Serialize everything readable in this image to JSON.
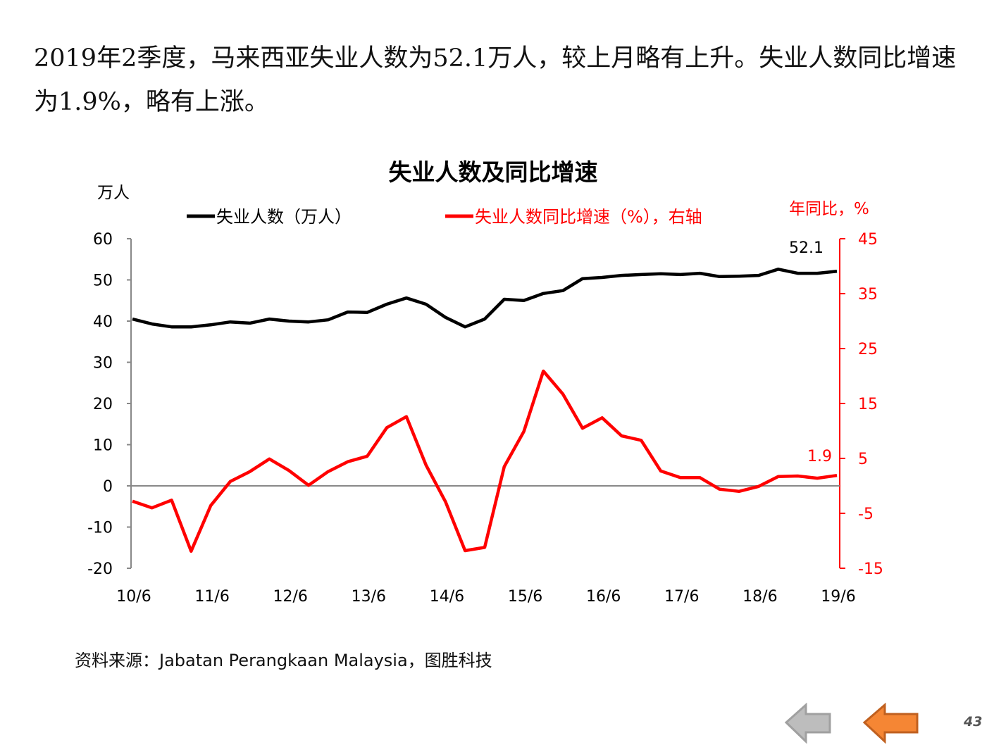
{
  "headline": "2019年2季度，马来西亚失业人数为52.1万人，较上月略有上升。失业人数同比增速为1.9%，略有上涨。",
  "source": "资料来源：Jabatan Perangkaan Malaysia，图胜科技",
  "page_number": "43",
  "nav": {
    "prev_icon": "arrow-left-gray-icon",
    "back_icon": "arrow-left-orange-icon"
  },
  "colors": {
    "series1": "#000000",
    "series2": "#ff0000",
    "axis": "#888888",
    "nav_gray": "#bdbdbd",
    "nav_orange": "#f58634"
  },
  "chart_data": {
    "type": "line",
    "title": "失业人数及同比增速",
    "ylabel_left": "万人",
    "ylabel_right": "年同比，%",
    "ylim_left": [
      -20,
      60
    ],
    "ylim_right": [
      -15,
      45
    ],
    "yticks_left": [
      "60",
      "50",
      "40",
      "30",
      "20",
      "10",
      "0",
      "-10",
      "-20"
    ],
    "yticks_right": [
      "45",
      "35",
      "25",
      "15",
      "5",
      "-5",
      "-15"
    ],
    "xtick_labels": [
      "10/6",
      "11/6",
      "12/6",
      "13/6",
      "14/6",
      "15/6",
      "16/6",
      "17/6",
      "18/6",
      "19/6"
    ],
    "legend": [
      "失业人数（万人）",
      "失业人数同比增速（%），右轴"
    ],
    "legend_position": "top",
    "grid": false,
    "series": [
      {
        "name": "失业人数（万人）",
        "axis": "left",
        "values": [
          40.5,
          39.3,
          38.6,
          38.6,
          39.1,
          39.8,
          39.5,
          40.5,
          40.0,
          39.8,
          40.3,
          42.2,
          42.1,
          44.1,
          45.6,
          44.1,
          40.9,
          38.6,
          40.5,
          45.3,
          45.0,
          46.7,
          47.4,
          50.3,
          50.6,
          51.1,
          51.3,
          51.5,
          51.3,
          51.6,
          50.8,
          50.9,
          51.1,
          52.6,
          51.6,
          51.6,
          52.1
        ]
      },
      {
        "name": "失业人数同比增速（%），右轴",
        "axis": "right",
        "values": [
          -2.8,
          -4.0,
          -2.6,
          -11.9,
          -3.6,
          0.8,
          2.6,
          4.9,
          2.8,
          0.1,
          2.6,
          4.4,
          5.4,
          10.6,
          12.6,
          3.8,
          -2.9,
          -11.8,
          -11.2,
          3.5,
          9.9,
          20.9,
          16.7,
          10.5,
          12.4,
          9.1,
          8.3,
          2.7,
          1.5,
          1.5,
          -0.6,
          -1.0,
          -0.1,
          1.7,
          1.8,
          1.4,
          1.9
        ]
      }
    ],
    "annotations": [
      "52.1",
      "1.9"
    ]
  }
}
